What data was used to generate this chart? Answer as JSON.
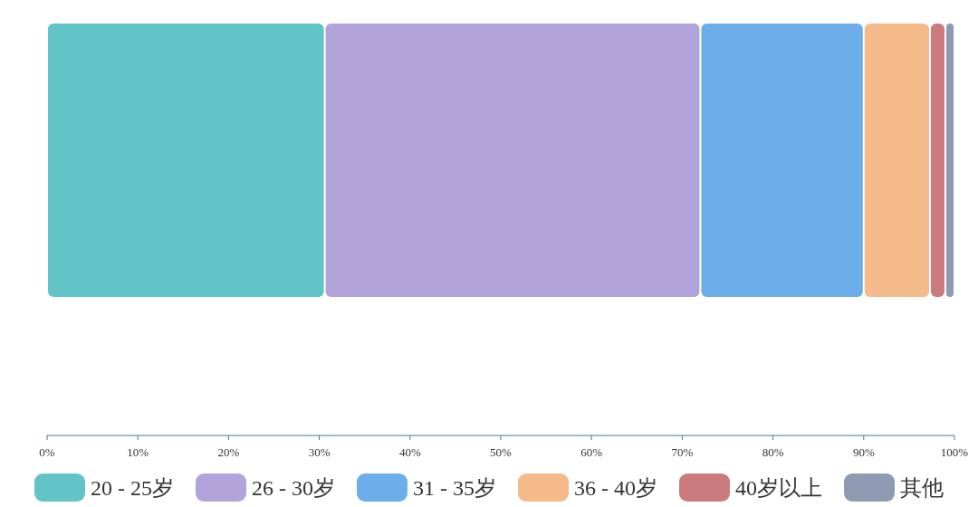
{
  "chart_data": {
    "type": "bar",
    "orientation": "horizontal",
    "stacked": true,
    "categories": [
      null
    ],
    "series": [
      {
        "name": "20 - 25岁",
        "color": "#63c4c7",
        "values": [
          30.6
        ]
      },
      {
        "name": "26 - 30岁",
        "color": "#b2a3da",
        "values": [
          41.4
        ]
      },
      {
        "name": "31 - 35岁",
        "color": "#6caeea",
        "values": [
          18.0
        ]
      },
      {
        "name": "36 - 40岁",
        "color": "#f5ba8a",
        "values": [
          7.3
        ]
      },
      {
        "name": "40岁以上",
        "color": "#cb7b80",
        "values": [
          1.7
        ]
      },
      {
        "name": "其他",
        "color": "#8f9ab3",
        "values": [
          1.0
        ]
      }
    ],
    "xlim": [
      0,
      100
    ],
    "xticks": [
      {
        "value": 0,
        "label": "0%"
      },
      {
        "value": 10,
        "label": "10%"
      },
      {
        "value": 20,
        "label": "20%"
      },
      {
        "value": 30,
        "label": "30%"
      },
      {
        "value": 40,
        "label": "40%"
      },
      {
        "value": 50,
        "label": "50%"
      },
      {
        "value": 60,
        "label": "60%"
      },
      {
        "value": 70,
        "label": "70%"
      },
      {
        "value": 80,
        "label": "80%"
      },
      {
        "value": 90,
        "label": "90%"
      },
      {
        "value": 100,
        "label": "100%"
      }
    ],
    "tick_labels": "x",
    "grid": false,
    "legend": "bottom"
  }
}
